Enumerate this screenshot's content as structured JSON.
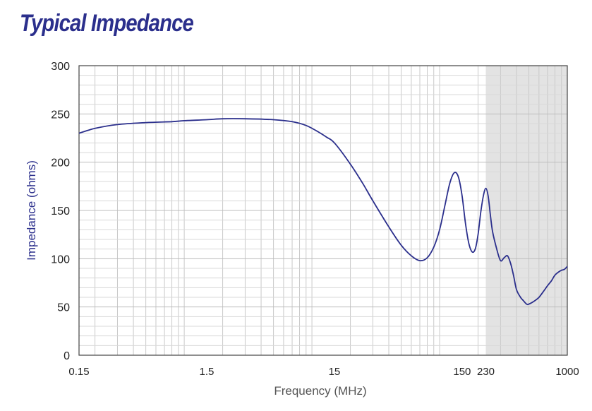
{
  "title": "Typical Impedance",
  "chart_data": {
    "type": "line",
    "title": "Typical Impedance",
    "xlabel": "Frequency (MHz)",
    "ylabel": "Impedance (ohms)",
    "x_scale": "log",
    "xlim": [
      0.15,
      1000
    ],
    "ylim": [
      0,
      300
    ],
    "grid": true,
    "x_ticks": [
      {
        "value": 0.15,
        "label": "0.15"
      },
      {
        "value": 1.5,
        "label": "1.5"
      },
      {
        "value": 15,
        "label": "15"
      },
      {
        "value": 150,
        "label": "150"
      },
      {
        "value": 230,
        "label": "230"
      },
      {
        "value": 1000,
        "label": "1000"
      }
    ],
    "y_ticks": [
      0,
      50,
      100,
      150,
      200,
      250,
      300
    ],
    "shaded_region": {
      "x_from": 230,
      "x_to": 1000,
      "color": "#e3e3e3"
    },
    "line_color": "#2b2f8c",
    "series": [
      {
        "x": [
          0.15,
          0.2,
          0.3,
          0.5,
          0.8,
          1.0,
          1.5,
          2.0,
          3.0,
          5.0,
          7.0,
          9.0,
          11.0,
          13.0,
          15.0,
          20.0,
          25.0,
          30.0,
          40.0,
          50.0,
          60.0,
          70.0,
          80.0,
          90.0,
          100.0,
          110.0,
          120.0,
          130.0,
          140.0,
          150.0,
          160.0,
          170.0,
          180.0,
          190.0,
          200.0,
          210.0,
          220.0,
          230.0,
          240.0,
          250.0,
          260.0,
          280.0,
          300.0,
          320.0,
          340.0,
          360.0,
          380.0,
          400.0,
          430.0,
          450.0,
          480.0,
          500.0,
          550.0,
          600.0,
          650.0,
          700.0,
          750.0,
          800.0,
          850.0,
          900.0,
          950.0,
          1000.0
        ],
        "y": [
          230,
          235,
          239,
          241,
          242,
          243,
          244,
          245,
          245,
          244,
          242,
          238,
          232,
          226,
          220,
          198,
          178,
          160,
          133,
          114,
          103,
          98,
          101,
          112,
          130,
          155,
          178,
          189,
          185,
          165,
          135,
          115,
          107,
          110,
          125,
          148,
          165,
          173,
          165,
          145,
          128,
          110,
          98,
          101,
          103,
          95,
          82,
          68,
          60,
          57,
          53,
          53,
          56,
          60,
          66,
          72,
          77,
          83,
          86,
          88,
          89,
          92
        ]
      }
    ]
  }
}
